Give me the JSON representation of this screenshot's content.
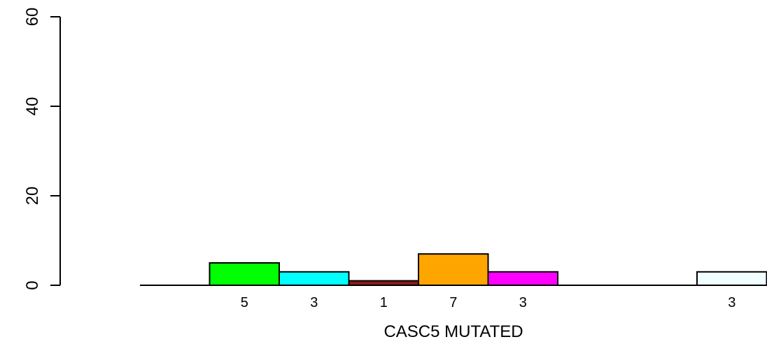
{
  "chart_data": {
    "type": "bar",
    "title": "",
    "xlabel": "CASC5 MUTATED",
    "ylabel": "",
    "ylim": [
      0,
      60
    ],
    "yticks": [
      0,
      20,
      40,
      60
    ],
    "grid": false,
    "legend": "none",
    "slots": 9,
    "bars": [
      {
        "slot": 1,
        "value": 0,
        "color": "#ffffff",
        "label": ""
      },
      {
        "slot": 2,
        "value": 5,
        "color": "#00ff00",
        "label": "5"
      },
      {
        "slot": 3,
        "value": 3,
        "color": "#00ffff",
        "label": "3"
      },
      {
        "slot": 4,
        "value": 1,
        "color": "#8b1a1a",
        "label": "1"
      },
      {
        "slot": 5,
        "value": 7,
        "color": "#ffa500",
        "label": "7"
      },
      {
        "slot": 6,
        "value": 3,
        "color": "#ff00ff",
        "label": "3"
      },
      {
        "slot": 7,
        "value": 0,
        "color": "#ffffff",
        "label": ""
      },
      {
        "slot": 8,
        "value": 0,
        "color": "#ffffff",
        "label": ""
      },
      {
        "slot": 9,
        "value": 3,
        "color": "#f0ffff",
        "label": "3"
      }
    ]
  }
}
